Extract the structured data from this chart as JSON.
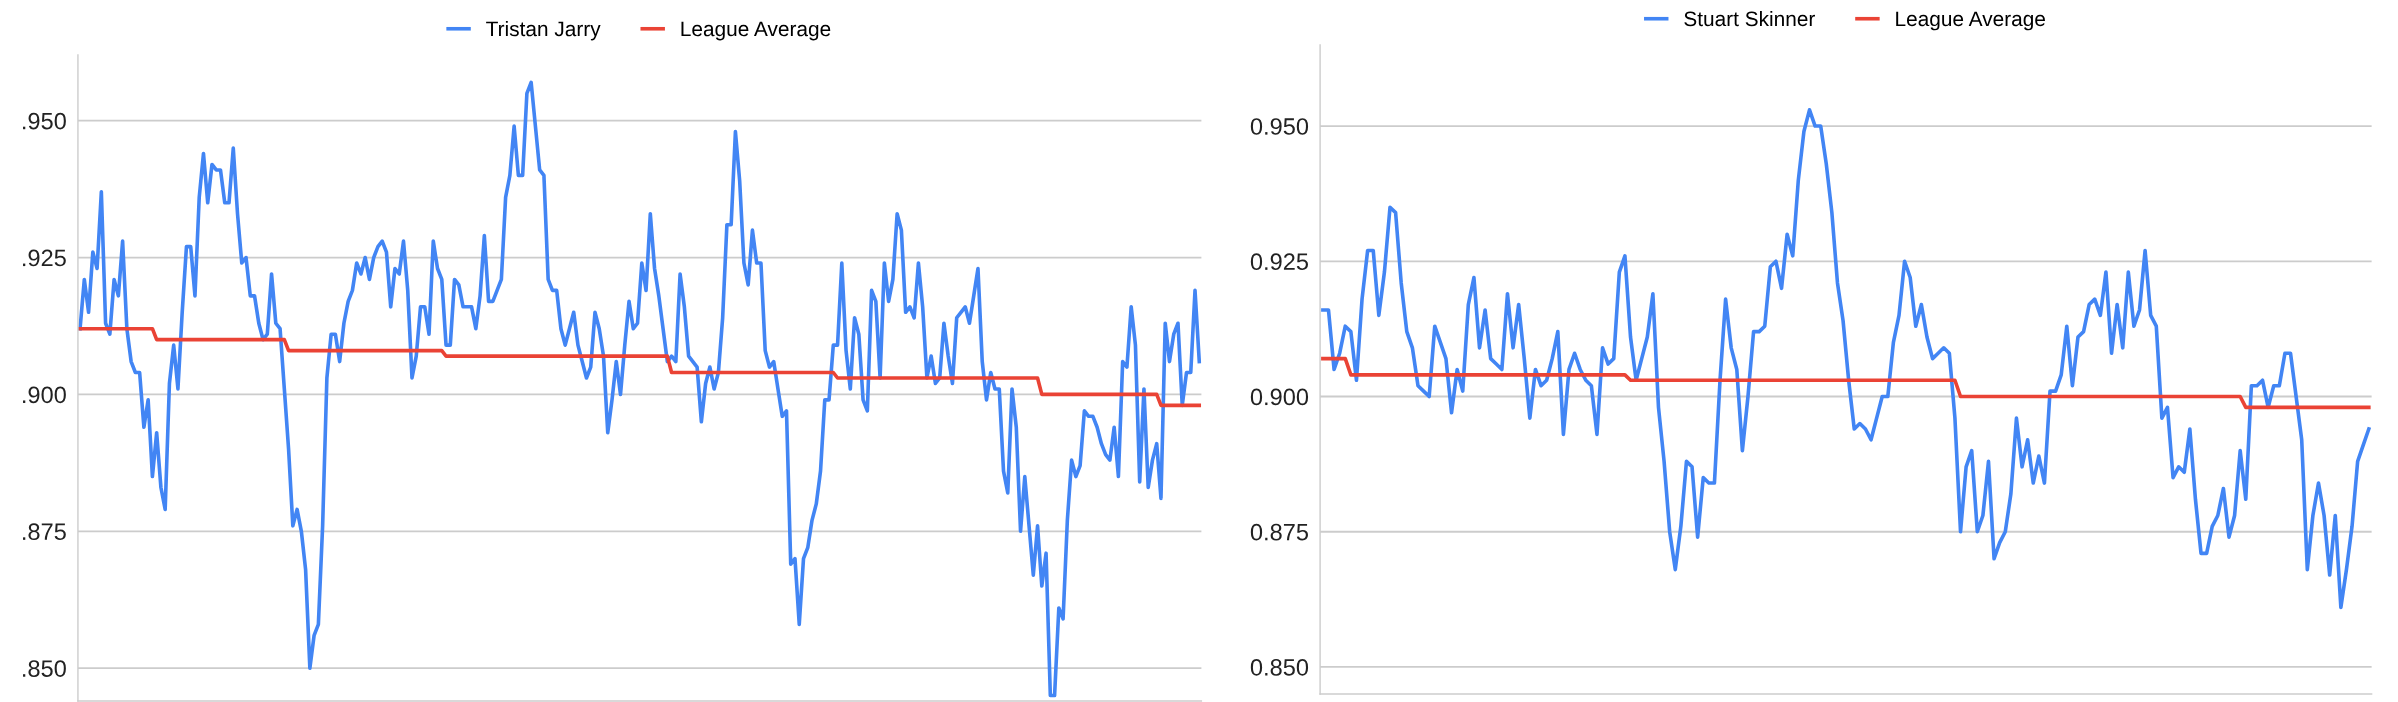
{
  "chart_data": [
    {
      "type": "line",
      "legend": "top",
      "grid": "y",
      "tick_labels": "y",
      "line_style": "solid",
      "ylim": [
        0.844,
        0.962
      ],
      "yticks": [
        {
          "value": 0.85,
          "label": ".850"
        },
        {
          "value": 0.875,
          "label": ".875"
        },
        {
          "value": 0.9,
          "label": ".900"
        },
        {
          "value": 0.925,
          "label": ".925"
        },
        {
          "value": 0.95,
          "label": ".950"
        }
      ],
      "categories": [
        null,
        null,
        null,
        null,
        null,
        null,
        null,
        null,
        null,
        null,
        null,
        null,
        null,
        null,
        null,
        null,
        null,
        null,
        null,
        null,
        null,
        null,
        null,
        null,
        null,
        null,
        null,
        null,
        null,
        null,
        null,
        null,
        null,
        null,
        null,
        null,
        null,
        null,
        null,
        null,
        null,
        null,
        null,
        null,
        null,
        null,
        null,
        null,
        null,
        null,
        null,
        null,
        null,
        null,
        null,
        null,
        null,
        null,
        null,
        null,
        null,
        null,
        null,
        null,
        null,
        null,
        null,
        null,
        null,
        null,
        null,
        null,
        null,
        null,
        null,
        null,
        null,
        null,
        null,
        null,
        null,
        null,
        null,
        null,
        null,
        null,
        null,
        null,
        null,
        null,
        null,
        null,
        null,
        null,
        null,
        null,
        null,
        null,
        null,
        null,
        null,
        null,
        null,
        null,
        null,
        null,
        null,
        null,
        null,
        null,
        null,
        null,
        null,
        null,
        null,
        null,
        null,
        null,
        null,
        null,
        null,
        null,
        null,
        null,
        null,
        null,
        null,
        null,
        null,
        null,
        null,
        null,
        null,
        null,
        null,
        null,
        null,
        null,
        null,
        null,
        null,
        null,
        null,
        null,
        null,
        null,
        null,
        null,
        null,
        null,
        null,
        null,
        null,
        null,
        null,
        null,
        null,
        null,
        null,
        null,
        null,
        null,
        null,
        null,
        null,
        null,
        null,
        null,
        null,
        null,
        null,
        null,
        null,
        null,
        null,
        null,
        null,
        null,
        null,
        null,
        null,
        null,
        null,
        null,
        null,
        null,
        null,
        null,
        null,
        null,
        null,
        null,
        null,
        null,
        null,
        null,
        null,
        null,
        null,
        null,
        null,
        null,
        null,
        null,
        null,
        null,
        null,
        null,
        null,
        null,
        null,
        null,
        null,
        null,
        null,
        null,
        null,
        null,
        null,
        null,
        null,
        null,
        null,
        null,
        null,
        null,
        null,
        null,
        null,
        null,
        null,
        null,
        null,
        null,
        null,
        null,
        null,
        null,
        null,
        null,
        null,
        null,
        null,
        null,
        null,
        null,
        null,
        null,
        null,
        null,
        null,
        null,
        null,
        null,
        null,
        null,
        null,
        null,
        null,
        null,
        null,
        null,
        null,
        null
      ],
      "series": [
        {
          "name": "Tristan Jarry",
          "color": "#4285f4",
          "values": [
            0.912,
            0.921,
            0.915,
            0.926,
            0.923,
            0.937,
            0.913,
            0.911,
            0.921,
            0.918,
            0.928,
            0.912,
            0.906,
            0.904,
            0.904,
            0.894,
            0.899,
            0.885,
            0.893,
            0.883,
            0.879,
            0.902,
            0.909,
            0.901,
            0.915,
            0.927,
            0.927,
            0.918,
            0.936,
            0.944,
            0.935,
            0.942,
            0.941,
            0.941,
            0.935,
            0.935,
            0.945,
            0.933,
            0.924,
            0.925,
            0.918,
            0.918,
            0.913,
            0.91,
            0.911,
            0.922,
            0.913,
            0.912,
            0.901,
            0.89,
            0.876,
            0.879,
            0.875,
            0.868,
            0.85,
            0.856,
            0.858,
            0.876,
            0.903,
            0.911,
            0.911,
            0.906,
            0.913,
            0.917,
            0.919,
            0.924,
            0.922,
            0.925,
            0.921,
            0.925,
            0.927,
            0.928,
            0.926,
            0.916,
            0.923,
            0.922,
            0.928,
            0.919,
            0.903,
            0.907,
            0.916,
            0.916,
            0.911,
            0.928,
            0.923,
            0.921,
            0.909,
            0.909,
            0.921,
            0.92,
            0.916,
            0.916,
            0.916,
            0.912,
            0.918,
            0.929,
            0.917,
            0.917,
            0.919,
            0.921,
            0.936,
            0.94,
            0.949,
            0.94,
            0.94,
            0.955,
            0.957,
            0.949,
            0.941,
            0.94,
            0.921,
            0.919,
            0.919,
            0.912,
            0.909,
            0.912,
            0.915,
            0.909,
            0.906,
            0.903,
            0.905,
            0.915,
            0.912,
            0.907,
            0.893,
            0.899,
            0.906,
            0.9,
            0.909,
            0.917,
            0.912,
            0.913,
            0.924,
            0.919,
            0.933,
            0.923,
            0.918,
            0.912,
            0.906,
            0.907,
            0.906,
            0.922,
            0.916,
            0.907,
            0.906,
            0.905,
            0.895,
            0.902,
            0.905,
            0.901,
            0.904,
            0.914,
            0.931,
            0.931,
            0.948,
            0.939,
            0.924,
            0.92,
            0.93,
            0.924,
            0.924,
            0.908,
            0.905,
            0.906,
            0.901,
            0.896,
            0.897,
            0.869,
            0.87,
            0.858,
            0.87,
            0.872,
            0.877,
            0.88,
            0.886,
            0.899,
            0.899,
            0.909,
            0.909,
            0.924,
            0.908,
            0.901,
            0.914,
            0.911,
            0.899,
            0.897,
            0.919,
            0.917,
            0.903,
            0.924,
            0.917,
            0.921,
            0.933,
            0.93,
            0.915,
            0.916,
            0.914,
            0.924,
            0.916,
            0.903,
            0.907,
            0.902,
            0.903,
            0.913,
            0.907,
            0.902,
            0.914,
            0.915,
            0.916,
            0.913,
            0.918,
            0.923,
            0.906,
            0.899,
            0.904,
            0.901,
            0.901,
            0.886,
            0.882,
            0.901,
            0.894,
            0.875,
            0.885,
            0.876,
            0.867,
            0.876,
            0.865,
            0.871,
            0.845,
            0.845,
            0.861,
            0.859,
            0.877,
            0.888,
            0.885,
            0.887,
            0.897,
            0.896,
            0.896,
            0.894,
            0.891,
            0.889,
            0.888,
            0.894,
            0.885,
            0.906,
            0.905,
            0.916,
            0.909,
            0.884,
            0.901,
            0.883,
            0.888,
            0.891,
            0.881,
            0.913,
            0.906,
            0.911,
            0.913,
            0.898,
            0.904,
            0.904,
            0.919,
            0.906
          ]
        },
        {
          "name": "League Average",
          "color": "#ea4335",
          "values": [
            0.912,
            0.912,
            0.912,
            0.912,
            0.912,
            0.912,
            0.912,
            0.912,
            0.912,
            0.912,
            0.912,
            0.912,
            0.912,
            0.912,
            0.912,
            0.912,
            0.912,
            0.912,
            0.91,
            0.91,
            0.91,
            0.91,
            0.91,
            0.91,
            0.91,
            0.91,
            0.91,
            0.91,
            0.91,
            0.91,
            0.91,
            0.91,
            0.91,
            0.91,
            0.91,
            0.91,
            0.91,
            0.91,
            0.91,
            0.91,
            0.91,
            0.91,
            0.91,
            0.91,
            0.91,
            0.91,
            0.91,
            0.91,
            0.91,
            0.908,
            0.908,
            0.908,
            0.908,
            0.908,
            0.908,
            0.908,
            0.908,
            0.908,
            0.908,
            0.908,
            0.908,
            0.908,
            0.908,
            0.908,
            0.908,
            0.908,
            0.908,
            0.908,
            0.908,
            0.908,
            0.908,
            0.908,
            0.908,
            0.908,
            0.908,
            0.908,
            0.908,
            0.908,
            0.908,
            0.908,
            0.908,
            0.908,
            0.908,
            0.908,
            0.908,
            0.908,
            0.907,
            0.907,
            0.907,
            0.907,
            0.907,
            0.907,
            0.907,
            0.907,
            0.907,
            0.907,
            0.907,
            0.907,
            0.907,
            0.907,
            0.907,
            0.907,
            0.907,
            0.907,
            0.907,
            0.907,
            0.907,
            0.907,
            0.907,
            0.907,
            0.907,
            0.907,
            0.907,
            0.907,
            0.907,
            0.907,
            0.907,
            0.907,
            0.907,
            0.907,
            0.907,
            0.907,
            0.907,
            0.907,
            0.907,
            0.907,
            0.907,
            0.907,
            0.907,
            0.907,
            0.907,
            0.907,
            0.907,
            0.907,
            0.907,
            0.907,
            0.907,
            0.907,
            0.907,
            0.904,
            0.904,
            0.904,
            0.904,
            0.904,
            0.904,
            0.904,
            0.904,
            0.904,
            0.904,
            0.904,
            0.904,
            0.904,
            0.904,
            0.904,
            0.904,
            0.904,
            0.904,
            0.904,
            0.904,
            0.904,
            0.904,
            0.904,
            0.904,
            0.904,
            0.904,
            0.904,
            0.904,
            0.904,
            0.904,
            0.904,
            0.904,
            0.904,
            0.904,
            0.904,
            0.904,
            0.904,
            0.904,
            0.904,
            0.903,
            0.903,
            0.903,
            0.903,
            0.903,
            0.903,
            0.903,
            0.903,
            0.903,
            0.903,
            0.903,
            0.903,
            0.903,
            0.903,
            0.903,
            0.903,
            0.903,
            0.903,
            0.903,
            0.903,
            0.903,
            0.903,
            0.903,
            0.903,
            0.903,
            0.903,
            0.903,
            0.903,
            0.903,
            0.903,
            0.903,
            0.903,
            0.903,
            0.903,
            0.903,
            0.903,
            0.903,
            0.903,
            0.903,
            0.903,
            0.903,
            0.903,
            0.903,
            0.903,
            0.903,
            0.903,
            0.903,
            0.903,
            0.9,
            0.9,
            0.9,
            0.9,
            0.9,
            0.9,
            0.9,
            0.9,
            0.9,
            0.9,
            0.9,
            0.9,
            0.9,
            0.9,
            0.9,
            0.9,
            0.9,
            0.9,
            0.9,
            0.9,
            0.9,
            0.9,
            0.9,
            0.9,
            0.9,
            0.9,
            0.9,
            0.9,
            0.898,
            0.898,
            0.898,
            0.898,
            0.898,
            0.898,
            0.898,
            0.898,
            0.898,
            0.898
          ]
        }
      ]
    },
    {
      "type": "line",
      "legend": "top",
      "grid": "y",
      "tick_labels": "y",
      "line_style": "solid",
      "ylim": [
        0.845,
        0.965
      ],
      "yticks": [
        {
          "value": 0.85,
          "label": "0.850"
        },
        {
          "value": 0.875,
          "label": "0.875"
        },
        {
          "value": 0.9,
          "label": "0.900"
        },
        {
          "value": 0.925,
          "label": "0.925"
        },
        {
          "value": 0.95,
          "label": "0.950"
        }
      ],
      "categories": [
        null,
        null,
        null,
        null,
        null,
        null,
        null,
        null,
        null,
        null,
        null,
        null,
        null,
        null,
        null,
        null,
        null,
        null,
        null,
        null,
        null,
        null,
        null,
        null,
        null,
        null,
        null,
        null,
        null,
        null,
        null,
        null,
        null,
        null,
        null,
        null,
        null,
        null,
        null,
        null,
        null,
        null,
        null,
        null,
        null,
        null,
        null,
        null,
        null,
        null,
        null,
        null,
        null,
        null,
        null,
        null,
        null,
        null,
        null,
        null,
        null,
        null,
        null,
        null,
        null,
        null,
        null,
        null,
        null,
        null,
        null,
        null,
        null,
        null,
        null,
        null,
        null,
        null,
        null,
        null,
        null,
        null,
        null,
        null,
        null,
        null,
        null,
        null,
        null,
        null,
        null,
        null,
        null,
        null,
        null,
        null,
        null,
        null,
        null,
        null,
        null,
        null,
        null,
        null,
        null,
        null,
        null,
        null,
        null,
        null,
        null,
        null,
        null,
        null,
        null,
        null,
        null,
        null,
        null,
        null,
        null,
        null,
        null,
        null,
        null,
        null,
        null,
        null,
        null,
        null,
        null,
        null,
        null,
        null,
        null,
        null,
        null,
        null,
        null,
        null,
        null,
        null,
        null,
        null,
        null,
        null,
        null,
        null,
        null,
        null,
        null,
        null,
        null,
        null,
        null,
        null,
        null,
        null,
        null,
        null,
        null,
        null,
        null,
        null,
        null,
        null,
        null,
        null,
        null,
        null,
        null,
        null,
        null,
        null,
        null,
        null,
        null,
        null,
        null,
        null,
        null,
        null,
        null,
        null,
        null,
        null,
        null,
        null
      ],
      "series": [
        {
          "name": "Stuart Skinner",
          "color": "#4285f4",
          "values": [
            0.916,
            0.916,
            0.905,
            0.908,
            0.913,
            0.912,
            0.903,
            0.918,
            0.927,
            0.927,
            0.915,
            0.923,
            0.935,
            0.934,
            0.921,
            0.912,
            0.909,
            0.902,
            0.901,
            0.9,
            0.913,
            0.91,
            0.907,
            0.897,
            0.905,
            0.901,
            0.917,
            0.922,
            0.909,
            0.916,
            0.907,
            0.906,
            0.905,
            0.919,
            0.909,
            0.917,
            0.907,
            0.896,
            0.905,
            0.902,
            0.903,
            0.907,
            0.912,
            0.893,
            0.905,
            0.908,
            0.905,
            0.903,
            0.902,
            0.893,
            0.909,
            0.906,
            0.907,
            0.923,
            0.926,
            0.911,
            0.903,
            0.907,
            0.911,
            0.919,
            0.898,
            0.888,
            0.875,
            0.868,
            0.876,
            0.888,
            0.887,
            0.874,
            0.885,
            0.884,
            0.884,
            0.903,
            0.918,
            0.909,
            0.905,
            0.89,
            0.9,
            0.912,
            0.912,
            0.913,
            0.924,
            0.925,
            0.92,
            0.93,
            0.926,
            0.94,
            0.949,
            0.953,
            0.95,
            0.95,
            0.943,
            0.934,
            0.921,
            0.914,
            0.903,
            0.894,
            0.895,
            0.894,
            0.892,
            0.896,
            0.9,
            0.9,
            0.91,
            0.915,
            0.925,
            0.922,
            0.913,
            0.917,
            0.911,
            0.907,
            0.908,
            0.909,
            0.908,
            0.896,
            0.875,
            0.887,
            0.89,
            0.875,
            0.878,
            0.888,
            0.87,
            0.873,
            0.875,
            0.882,
            0.896,
            0.887,
            0.892,
            0.884,
            0.889,
            0.884,
            0.901,
            0.901,
            0.904,
            0.913,
            0.902,
            0.911,
            0.912,
            0.917,
            0.918,
            0.915,
            0.923,
            0.908,
            0.917,
            0.909,
            0.923,
            0.913,
            0.916,
            0.927,
            0.915,
            0.913,
            0.896,
            0.898,
            0.885,
            0.887,
            0.886,
            0.894,
            0.881,
            0.871,
            0.871,
            0.876,
            0.878,
            0.883,
            0.874,
            0.878,
            0.89,
            0.881,
            0.902,
            0.902,
            0.903,
            0.898,
            0.902,
            0.902,
            0.908,
            0.908,
            0.9,
            0.892,
            0.868,
            0.878,
            0.884,
            0.878,
            0.867,
            0.878,
            0.861,
            0.868,
            0.876,
            0.888,
            0.891,
            0.894
          ]
        },
        {
          "name": "League Average",
          "color": "#ea4335",
          "values": [
            0.907,
            0.907,
            0.907,
            0.907,
            0.907,
            0.904,
            0.904,
            0.904,
            0.904,
            0.904,
            0.904,
            0.904,
            0.904,
            0.904,
            0.904,
            0.904,
            0.904,
            0.904,
            0.904,
            0.904,
            0.904,
            0.904,
            0.904,
            0.904,
            0.904,
            0.904,
            0.904,
            0.904,
            0.904,
            0.904,
            0.904,
            0.904,
            0.904,
            0.904,
            0.904,
            0.904,
            0.904,
            0.904,
            0.904,
            0.904,
            0.904,
            0.904,
            0.904,
            0.904,
            0.904,
            0.904,
            0.904,
            0.904,
            0.904,
            0.904,
            0.904,
            0.904,
            0.904,
            0.904,
            0.904,
            0.903,
            0.903,
            0.903,
            0.903,
            0.903,
            0.903,
            0.903,
            0.903,
            0.903,
            0.903,
            0.903,
            0.903,
            0.903,
            0.903,
            0.903,
            0.903,
            0.903,
            0.903,
            0.903,
            0.903,
            0.903,
            0.903,
            0.903,
            0.903,
            0.903,
            0.903,
            0.903,
            0.903,
            0.903,
            0.903,
            0.903,
            0.903,
            0.903,
            0.903,
            0.903,
            0.903,
            0.903,
            0.903,
            0.903,
            0.903,
            0.903,
            0.903,
            0.903,
            0.903,
            0.903,
            0.903,
            0.903,
            0.903,
            0.903,
            0.903,
            0.903,
            0.903,
            0.903,
            0.903,
            0.903,
            0.903,
            0.903,
            0.903,
            0.903,
            0.9,
            0.9,
            0.9,
            0.9,
            0.9,
            0.9,
            0.9,
            0.9,
            0.9,
            0.9,
            0.9,
            0.9,
            0.9,
            0.9,
            0.9,
            0.9,
            0.9,
            0.9,
            0.9,
            0.9,
            0.9,
            0.9,
            0.9,
            0.9,
            0.9,
            0.9,
            0.9,
            0.9,
            0.9,
            0.9,
            0.9,
            0.9,
            0.9,
            0.9,
            0.9,
            0.9,
            0.9,
            0.9,
            0.9,
            0.9,
            0.9,
            0.9,
            0.9,
            0.9,
            0.9,
            0.9,
            0.9,
            0.9,
            0.9,
            0.9,
            0.9,
            0.898,
            0.898,
            0.898,
            0.898,
            0.898,
            0.898,
            0.898,
            0.898,
            0.898,
            0.898,
            0.898,
            0.898,
            0.898,
            0.898,
            0.898,
            0.898,
            0.898,
            0.898,
            0.898,
            0.898,
            0.898,
            0.898,
            0.898
          ]
        }
      ]
    }
  ]
}
